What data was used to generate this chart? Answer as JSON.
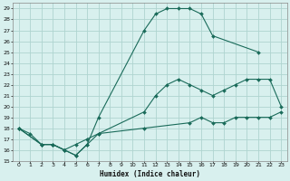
{
  "xlabel": "Humidex (Indice chaleur)",
  "bg_color": "#d8f0ee",
  "grid_color": "#afd4d0",
  "line_color": "#1a6b5a",
  "xlim": [
    -0.5,
    23.5
  ],
  "ylim": [
    15,
    29.5
  ],
  "yticks": [
    15,
    16,
    17,
    18,
    19,
    20,
    21,
    22,
    23,
    24,
    25,
    26,
    27,
    28,
    29
  ],
  "xticks": [
    0,
    1,
    2,
    3,
    4,
    5,
    6,
    7,
    8,
    9,
    10,
    11,
    12,
    13,
    14,
    15,
    16,
    17,
    18,
    19,
    20,
    21,
    22,
    23
  ],
  "line1_x": [
    0,
    1,
    2,
    3,
    4,
    5,
    6,
    7,
    11,
    12,
    13,
    14,
    15,
    16,
    17,
    21
  ],
  "line1_y": [
    18,
    17.5,
    16.5,
    16.5,
    16.0,
    15.5,
    16.5,
    19.0,
    27.0,
    28.5,
    29.0,
    29.0,
    29.0,
    28.5,
    26.5,
    25.0
  ],
  "line2_x": [
    0,
    2,
    3,
    4,
    5,
    6,
    7,
    11,
    12,
    13,
    14,
    15,
    16,
    17,
    18,
    19,
    20,
    21,
    22,
    23
  ],
  "line2_y": [
    18,
    16.5,
    16.5,
    16.0,
    15.5,
    16.5,
    17.5,
    19.5,
    21.0,
    22.0,
    22.5,
    22.0,
    21.5,
    21.0,
    21.5,
    22.0,
    22.5,
    22.5,
    22.5,
    20.0
  ],
  "line3_x": [
    0,
    2,
    3,
    4,
    5,
    6,
    7,
    11,
    15,
    16,
    17,
    18,
    19,
    20,
    21,
    22,
    23
  ],
  "line3_y": [
    18,
    16.5,
    16.5,
    16.0,
    16.5,
    17.0,
    17.5,
    18.0,
    18.5,
    19.0,
    18.5,
    18.5,
    19.0,
    19.0,
    19.0,
    19.0,
    19.5
  ]
}
